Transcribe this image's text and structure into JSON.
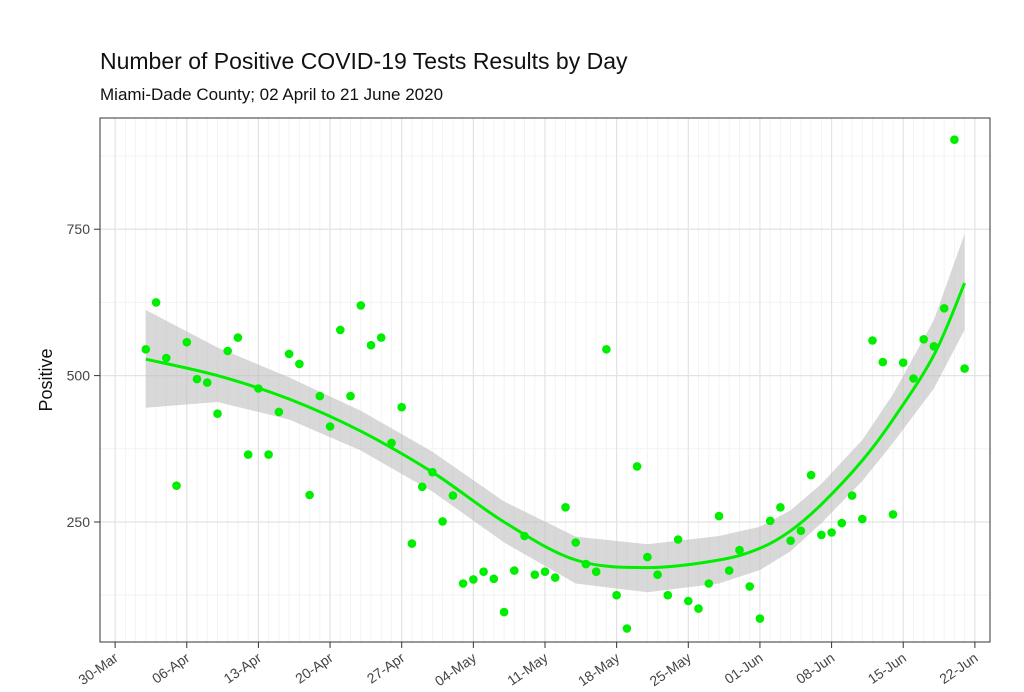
{
  "chart_data": {
    "type": "scatter",
    "title": "Number of Positive COVID-19 Tests Results by Day",
    "subtitle": "Miami-Dade County; 02 April to 21 June 2020",
    "xlabel": "",
    "ylabel": "Positive",
    "x_ticks": [
      "30-Mar",
      "06-Apr",
      "13-Apr",
      "20-Apr",
      "27-Apr",
      "04-May",
      "11-May",
      "18-May",
      "25-May",
      "01-Jun",
      "08-Jun",
      "15-Jun",
      "22-Jun"
    ],
    "xlim": [
      "2020-03-30",
      "2020-06-22"
    ],
    "y_ticks": [
      250,
      500,
      750
    ],
    "ylim": [
      45,
      940
    ],
    "grid": "on",
    "colors": {
      "points": "#00ee00",
      "smooth": "#00ee00",
      "band": "#bebebe",
      "panel_grid": "#ebebeb"
    },
    "series": [
      {
        "name": "",
        "type": "points",
        "x": [
          "2020-04-02",
          "2020-04-03",
          "2020-04-04",
          "2020-04-05",
          "2020-04-06",
          "2020-04-07",
          "2020-04-08",
          "2020-04-09",
          "2020-04-10",
          "2020-04-11",
          "2020-04-12",
          "2020-04-13",
          "2020-04-14",
          "2020-04-15",
          "2020-04-16",
          "2020-04-17",
          "2020-04-18",
          "2020-04-19",
          "2020-04-20",
          "2020-04-21",
          "2020-04-22",
          "2020-04-23",
          "2020-04-24",
          "2020-04-25",
          "2020-04-26",
          "2020-04-27",
          "2020-04-28",
          "2020-04-29",
          "2020-04-30",
          "2020-05-01",
          "2020-05-02",
          "2020-05-03",
          "2020-05-04",
          "2020-05-05",
          "2020-05-06",
          "2020-05-07",
          "2020-05-08",
          "2020-05-09",
          "2020-05-10",
          "2020-05-11",
          "2020-05-12",
          "2020-05-13",
          "2020-05-14",
          "2020-05-15",
          "2020-05-16",
          "2020-05-17",
          "2020-05-18",
          "2020-05-19",
          "2020-05-20",
          "2020-05-21",
          "2020-05-22",
          "2020-05-23",
          "2020-05-24",
          "2020-05-25",
          "2020-05-26",
          "2020-05-27",
          "2020-05-28",
          "2020-05-29",
          "2020-05-30",
          "2020-05-31",
          "2020-06-01",
          "2020-06-02",
          "2020-06-03",
          "2020-06-04",
          "2020-06-05",
          "2020-06-06",
          "2020-06-07",
          "2020-06-08",
          "2020-06-09",
          "2020-06-10",
          "2020-06-11",
          "2020-06-12",
          "2020-06-13",
          "2020-06-14",
          "2020-06-15",
          "2020-06-16",
          "2020-06-17",
          "2020-06-18",
          "2020-06-19",
          "2020-06-20",
          "2020-06-21"
        ],
        "y": [
          545,
          625,
          530,
          312,
          557,
          494,
          488,
          435,
          542,
          565,
          365,
          478,
          365,
          438,
          537,
          520,
          296,
          465,
          413,
          578,
          465,
          620,
          552,
          565,
          385,
          446,
          213,
          310,
          335,
          251,
          295,
          145,
          152,
          165,
          153,
          96,
          167,
          226,
          160,
          165,
          155,
          275,
          215,
          178,
          165,
          545,
          125,
          68,
          345,
          190,
          160,
          125,
          220,
          115,
          102,
          145,
          260,
          167,
          202,
          140,
          85,
          252,
          275,
          218,
          235,
          330,
          228,
          232,
          248,
          295,
          255,
          560,
          523,
          263,
          522,
          495,
          562,
          550,
          615,
          903,
          512
        ]
      }
    ],
    "smooth": {
      "x": [
        "2020-04-02",
        "2020-04-09",
        "2020-04-16",
        "2020-04-23",
        "2020-04-30",
        "2020-05-07",
        "2020-05-14",
        "2020-05-21",
        "2020-05-28",
        "2020-06-01",
        "2020-06-04",
        "2020-06-07",
        "2020-06-11",
        "2020-06-14",
        "2020-06-18",
        "2020-06-21"
      ],
      "y": [
        528,
        500,
        460,
        405,
        335,
        250,
        185,
        172,
        185,
        205,
        235,
        280,
        355,
        425,
        535,
        658
      ],
      "lower": [
        445,
        455,
        425,
        372,
        302,
        215,
        145,
        130,
        145,
        168,
        200,
        248,
        320,
        385,
        478,
        578
      ],
      "upper": [
        612,
        548,
        497,
        440,
        370,
        285,
        225,
        212,
        226,
        242,
        270,
        315,
        390,
        468,
        595,
        742
      ]
    }
  }
}
